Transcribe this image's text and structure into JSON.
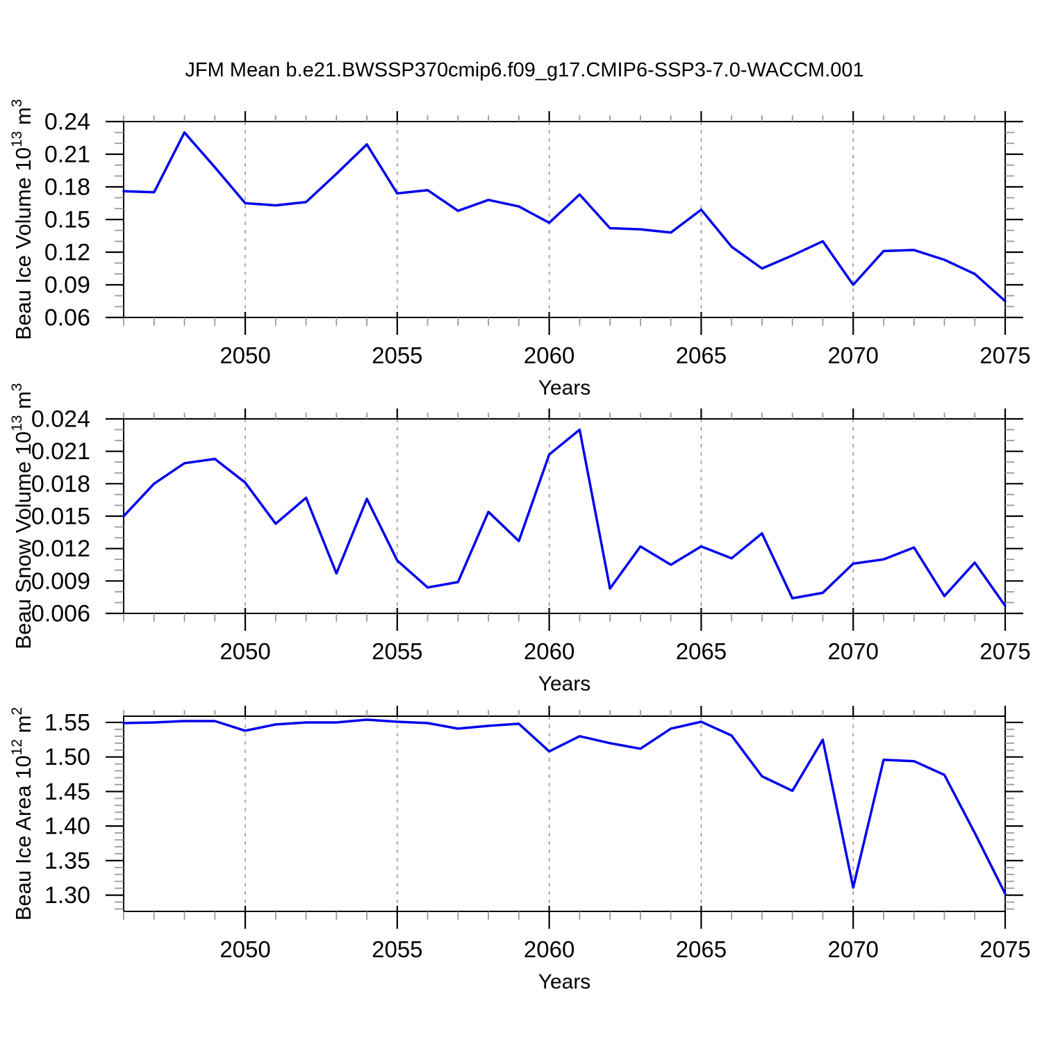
{
  "title": "JFM Mean b.e21.BWSSP370cmip6.f09_g17.CMIP6-SSP3-7.0-WACCM.001",
  "style": {
    "line_color": "#0000ee",
    "grid_color": "#8a8a8a",
    "axis_color": "#000000",
    "minor_tick_color": "#999999"
  },
  "chart_data": [
    {
      "type": "line",
      "name": "beau-ice-volume",
      "ylabel": "Beau Ice Volume 10^13 m^3",
      "ylabel_parts": [
        {
          "t": "Beau Ice Volume 10",
          "sup": false
        },
        {
          "t": "13",
          "sup": true
        },
        {
          "t": " m",
          "sup": false
        },
        {
          "t": "3",
          "sup": true
        }
      ],
      "xlabel": "Years",
      "xlim": [
        2046,
        2075
      ],
      "ylim": [
        0.06,
        0.24
      ],
      "xtick_values": [
        2050,
        2055,
        2060,
        2065,
        2070,
        2075
      ],
      "xtick_labels": [
        "2050",
        "2055",
        "2060",
        "2065",
        "2070",
        "2075"
      ],
      "x_minor_step": 1,
      "ytick_values": [
        0.06,
        0.09,
        0.12,
        0.15,
        0.18,
        0.21,
        0.24
      ],
      "ytick_labels": [
        "0.06",
        "0.09",
        "0.12",
        "0.15",
        "0.18",
        "0.21",
        "0.24"
      ],
      "y_minor_step": 0.01,
      "x_grid": [
        2050,
        2055,
        2060,
        2065,
        2070
      ],
      "grid_on": true,
      "legend": "none",
      "x": [
        2046,
        2047,
        2048,
        2049,
        2050,
        2051,
        2052,
        2053,
        2054,
        2055,
        2056,
        2057,
        2058,
        2059,
        2060,
        2061,
        2062,
        2063,
        2064,
        2065,
        2066,
        2067,
        2068,
        2069,
        2070,
        2071,
        2072,
        2073,
        2074,
        2075
      ],
      "values": [
        0.176,
        0.175,
        0.23,
        0.198,
        0.165,
        0.163,
        0.166,
        0.192,
        0.219,
        0.174,
        0.177,
        0.158,
        0.168,
        0.162,
        0.147,
        0.173,
        0.142,
        0.141,
        0.138,
        0.159,
        0.125,
        0.105,
        0.117,
        0.13,
        0.09,
        0.121,
        0.122,
        0.113,
        0.1,
        0.075
      ]
    },
    {
      "type": "line",
      "name": "beau-snow-volume",
      "ylabel": "Beau Snow Volume 10^13 m^3",
      "ylabel_parts": [
        {
          "t": "Beau Snow Volume 10",
          "sup": false
        },
        {
          "t": "13",
          "sup": true
        },
        {
          "t": " m",
          "sup": false
        },
        {
          "t": "3",
          "sup": true
        }
      ],
      "xlabel": "Years",
      "xlim": [
        2046,
        2075
      ],
      "ylim": [
        0.006,
        0.024
      ],
      "xtick_values": [
        2050,
        2055,
        2060,
        2065,
        2070,
        2075
      ],
      "xtick_labels": [
        "2050",
        "2055",
        "2060",
        "2065",
        "2070",
        "2075"
      ],
      "x_minor_step": 1,
      "ytick_values": [
        0.006,
        0.009,
        0.012,
        0.015,
        0.018,
        0.021,
        0.024
      ],
      "ytick_labels": [
        "0.006",
        "0.009",
        "0.012",
        "0.015",
        "0.018",
        "0.021",
        "0.024"
      ],
      "y_minor_step": 0.001,
      "x_grid": [
        2050,
        2055,
        2060,
        2065,
        2070
      ],
      "grid_on": true,
      "legend": "none",
      "x": [
        2046,
        2047,
        2048,
        2049,
        2050,
        2051,
        2052,
        2053,
        2054,
        2055,
        2056,
        2057,
        2058,
        2059,
        2060,
        2061,
        2062,
        2063,
        2064,
        2065,
        2066,
        2067,
        2068,
        2069,
        2070,
        2071,
        2072,
        2073,
        2074,
        2075
      ],
      "values": [
        0.015,
        0.018,
        0.0199,
        0.0203,
        0.0181,
        0.0143,
        0.0167,
        0.0097,
        0.0166,
        0.0109,
        0.0084,
        0.0089,
        0.0154,
        0.0127,
        0.0207,
        0.023,
        0.0083,
        0.0122,
        0.0105,
        0.0122,
        0.0111,
        0.0134,
        0.0074,
        0.0079,
        0.0106,
        0.011,
        0.0121,
        0.0076,
        0.0107,
        0.0067
      ]
    },
    {
      "type": "line",
      "name": "beau-ice-area",
      "ylabel": "Beau Ice Area 10^12 m^2",
      "ylabel_parts": [
        {
          "t": "Beau Ice Area 10",
          "sup": false
        },
        {
          "t": "12",
          "sup": true
        },
        {
          "t": " m",
          "sup": false
        },
        {
          "t": "2",
          "sup": true
        }
      ],
      "xlabel": "Years",
      "xlim": [
        2046,
        2075
      ],
      "ylim": [
        1.2765,
        1.559
      ],
      "xtick_values": [
        2050,
        2055,
        2060,
        2065,
        2070,
        2075
      ],
      "xtick_labels": [
        "2050",
        "2055",
        "2060",
        "2065",
        "2070",
        "2075"
      ],
      "x_minor_step": 1,
      "ytick_values": [
        1.3,
        1.35,
        1.4,
        1.45,
        1.5,
        1.55
      ],
      "ytick_labels": [
        "1.30",
        "1.35",
        "1.40",
        "1.45",
        "1.50",
        "1.55"
      ],
      "y_minor_step": 0.01,
      "x_grid": [
        2050,
        2055,
        2060,
        2065,
        2070
      ],
      "grid_on": true,
      "legend": "none",
      "x": [
        2046,
        2047,
        2048,
        2049,
        2050,
        2051,
        2052,
        2053,
        2054,
        2055,
        2056,
        2057,
        2058,
        2059,
        2060,
        2061,
        2062,
        2063,
        2064,
        2065,
        2066,
        2067,
        2068,
        2069,
        2070,
        2071,
        2072,
        2073,
        2074,
        2075
      ],
      "values": [
        1.549,
        1.55,
        1.552,
        1.552,
        1.538,
        1.547,
        1.55,
        1.55,
        1.554,
        1.551,
        1.549,
        1.541,
        1.545,
        1.548,
        1.508,
        1.53,
        1.52,
        1.512,
        1.541,
        1.551,
        1.531,
        1.472,
        1.451,
        1.525,
        1.311,
        1.496,
        1.494,
        1.474,
        1.39,
        1.302
      ]
    }
  ]
}
